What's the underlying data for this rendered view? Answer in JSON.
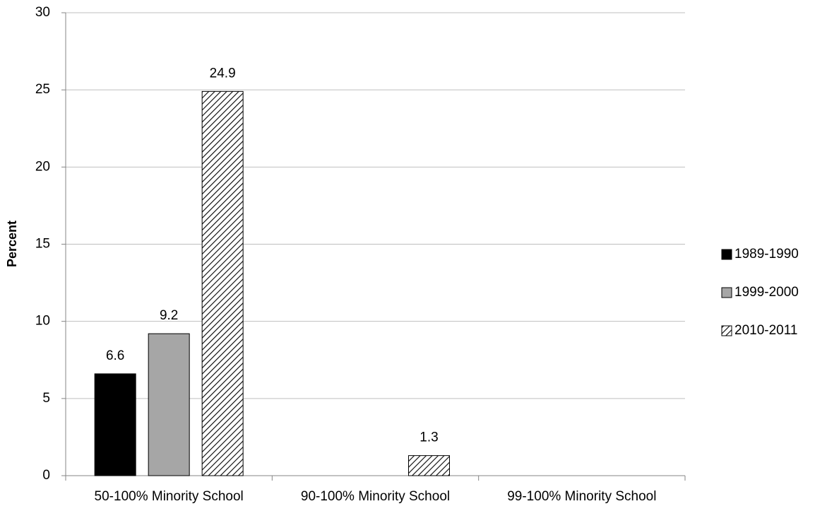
{
  "chart_data": {
    "type": "bar",
    "y_label": "Percent",
    "categories": [
      "50-100% Minority School",
      "90-100% Minority School",
      "99-100% Minority School"
    ],
    "series": [
      {
        "name": "1989-1990",
        "color": "#000000",
        "values": [
          6.6,
          null,
          null
        ]
      },
      {
        "name": "1999-2000",
        "color": "#a6a6a6",
        "values": [
          9.2,
          null,
          null
        ]
      },
      {
        "name": "2010-2011",
        "color": "#000000",
        "pattern": "diagonal",
        "values": [
          24.9,
          1.3,
          null
        ]
      }
    ],
    "ylim": [
      0,
      30
    ],
    "yticks": [
      0,
      5,
      10,
      15,
      20,
      25,
      30
    ],
    "grid": true,
    "legend": "right"
  }
}
